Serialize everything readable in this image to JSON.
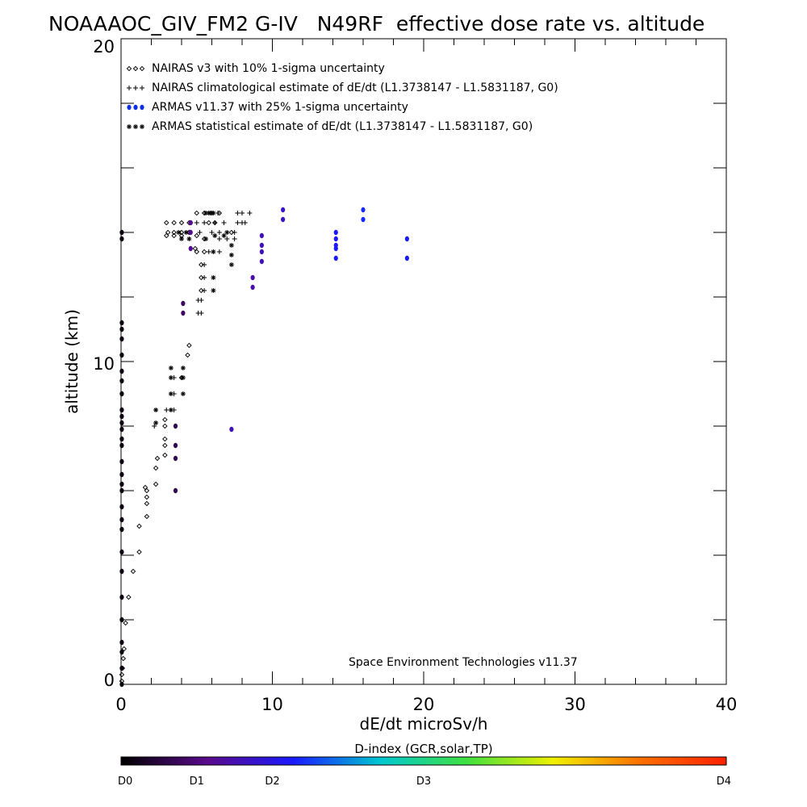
{
  "chart_data": {
    "type": "scatter",
    "title": "NOAAAOC_GIV_FM2 G-IV   N49RF  effective dose rate vs. altitude",
    "xlabel": "dE/dt microSv/h",
    "ylabel": "altitude (km)",
    "xlim": [
      0,
      40
    ],
    "ylim": [
      0,
      20
    ],
    "x_ticks": [
      "0",
      "10",
      "20",
      "30",
      "40"
    ],
    "y_ticks": [
      "0",
      "10",
      "20"
    ],
    "legend_position": "top-left",
    "legend": [
      {
        "label": "NAIRAS v3 with 10% 1-sigma uncertainty",
        "marker": "diamond",
        "color": "#000000"
      },
      {
        "label": "NAIRAS climatological estimate of dE/dt (L1.3738147 - L1.5831187, G0)",
        "marker": "plus",
        "color": "#000000"
      },
      {
        "label": "ARMAS v11.37 with 25% 1-sigma uncertainty",
        "marker": "dot",
        "color": "#1030e0"
      },
      {
        "label": "ARMAS statistical estimate of dE/dt (L1.3738147 - L1.5831187, G0)",
        "marker": "asterisk",
        "color": "#000000"
      }
    ],
    "annotation": "Space Environment Technologies v11.37",
    "colorbar": {
      "title": "D-index (GCR,solar,TP)",
      "labels": [
        "D0",
        "D1",
        "D2",
        "D3",
        "D4"
      ],
      "positions": [
        0,
        0.125,
        0.25,
        0.5,
        1.0
      ],
      "colors": [
        "#000000",
        "#5a0a8c",
        "#1a1aff",
        "#00c8d0",
        "#40e040",
        "#f0f000",
        "#ff7000",
        "#ff2000"
      ]
    },
    "series": [
      {
        "name": "NAIRAS v3 with 10% 1-sigma uncertainty",
        "marker": "diamond",
        "points": [
          [
            0.05,
            0.1
          ],
          [
            0.05,
            0.3
          ],
          [
            0.1,
            0.5
          ],
          [
            0.15,
            0.8
          ],
          [
            0.2,
            1.1
          ],
          [
            0.3,
            1.9
          ],
          [
            0.5,
            2.7
          ],
          [
            0.8,
            3.5
          ],
          [
            1.2,
            4.1
          ],
          [
            1.2,
            4.9
          ],
          [
            1.7,
            5.2
          ],
          [
            1.7,
            5.6
          ],
          [
            1.7,
            5.8
          ],
          [
            1.7,
            6.0
          ],
          [
            1.6,
            6.1
          ],
          [
            2.3,
            6.2
          ],
          [
            2.3,
            6.7
          ],
          [
            2.4,
            7.0
          ],
          [
            2.9,
            7.1
          ],
          [
            2.9,
            7.4
          ],
          [
            2.9,
            7.6
          ],
          [
            2.9,
            8.0
          ],
          [
            2.9,
            8.2
          ],
          [
            4.0,
            9.5
          ],
          [
            4.4,
            10.2
          ],
          [
            4.5,
            10.5
          ],
          [
            5.3,
            12.2
          ],
          [
            5.3,
            12.6
          ],
          [
            5.3,
            13.0
          ],
          [
            4.9,
            13.5
          ],
          [
            3.0,
            13.9
          ],
          [
            3.5,
            13.9
          ],
          [
            4.0,
            13.9
          ],
          [
            4.5,
            14.0
          ],
          [
            5.0,
            13.9
          ],
          [
            5.5,
            13.8
          ],
          [
            3.1,
            14.0
          ],
          [
            3.5,
            14.0
          ],
          [
            4.0,
            14.0
          ],
          [
            4.5,
            14.0
          ],
          [
            3.0,
            14.3
          ],
          [
            3.5,
            14.3
          ],
          [
            4.0,
            14.3
          ],
          [
            4.5,
            14.3
          ],
          [
            5.0,
            14.6
          ],
          [
            5.5,
            14.6
          ],
          [
            6.0,
            14.6
          ],
          [
            6.5,
            14.6
          ],
          [
            5.8,
            14.3
          ],
          [
            6.2,
            14.3
          ],
          [
            5.0,
            13.4
          ],
          [
            5.5,
            13.4
          ],
          [
            7.3,
            14.0
          ]
        ]
      },
      {
        "name": "NAIRAS climatological estimate of dE/dt (L1.3738147 - L1.5831187, G0)",
        "marker": "plus",
        "points": [
          [
            2.2,
            8.0
          ],
          [
            3.0,
            8.5
          ],
          [
            3.5,
            8.5
          ],
          [
            3.5,
            9.0
          ],
          [
            3.5,
            9.5
          ],
          [
            4.0,
            9.5
          ],
          [
            5.1,
            11.5
          ],
          [
            5.1,
            11.9
          ],
          [
            5.3,
            11.9
          ],
          [
            5.3,
            11.5
          ],
          [
            5.5,
            12.6
          ],
          [
            5.5,
            13.0
          ],
          [
            5.5,
            12.2
          ],
          [
            5.8,
            13.4
          ],
          [
            6.5,
            13.4
          ],
          [
            6.5,
            13.8
          ],
          [
            7.0,
            13.8
          ],
          [
            7.5,
            13.8
          ],
          [
            5.2,
            14.0
          ],
          [
            6.0,
            14.0
          ],
          [
            6.5,
            14.0
          ],
          [
            7.5,
            14.0
          ],
          [
            7.7,
            14.3
          ],
          [
            8.0,
            14.3
          ],
          [
            8.2,
            14.3
          ],
          [
            7.7,
            14.6
          ],
          [
            8.0,
            14.6
          ],
          [
            8.5,
            14.6
          ],
          [
            6.2,
            14.3
          ],
          [
            6.8,
            14.3
          ],
          [
            4.6,
            14.3
          ],
          [
            5.0,
            14.3
          ],
          [
            5.5,
            14.3
          ],
          [
            6.0,
            14.6
          ],
          [
            6.4,
            14.6
          ]
        ]
      },
      {
        "name": "ARMAS v11.37 with 25% 1-sigma uncertainty",
        "marker": "dot",
        "points": [
          [
            0.05,
            0.0,
            0.02
          ],
          [
            0.05,
            0.5,
            0.02
          ],
          [
            0.05,
            1.0,
            0.02
          ],
          [
            0.05,
            1.3,
            0.02
          ],
          [
            0.05,
            2.0,
            0.02
          ],
          [
            0.05,
            2.7,
            0.02
          ],
          [
            0.05,
            3.5,
            0.02
          ],
          [
            0.05,
            4.1,
            0.02
          ],
          [
            0.05,
            4.8,
            0.02
          ],
          [
            0.05,
            5.1,
            0.02
          ],
          [
            0.05,
            5.5,
            0.02
          ],
          [
            0.05,
            6.0,
            0.02
          ],
          [
            0.05,
            6.2,
            0.02
          ],
          [
            0.05,
            6.5,
            0.02
          ],
          [
            0.05,
            6.9,
            0.02
          ],
          [
            0.05,
            7.4,
            0.02
          ],
          [
            0.05,
            7.6,
            0.02
          ],
          [
            0.05,
            7.9,
            0.02
          ],
          [
            0.05,
            8.1,
            0.02
          ],
          [
            0.05,
            8.3,
            0.02
          ],
          [
            0.05,
            8.5,
            0.02
          ],
          [
            0.05,
            9.0,
            0.02
          ],
          [
            0.05,
            9.4,
            0.02
          ],
          [
            0.05,
            9.7,
            0.02
          ],
          [
            0.05,
            10.2,
            0.02
          ],
          [
            0.05,
            10.7,
            0.02
          ],
          [
            0.05,
            11.0,
            0.02
          ],
          [
            0.05,
            11.2,
            0.02
          ],
          [
            0.05,
            13.8,
            0.02
          ],
          [
            0.05,
            14.0,
            0.02
          ],
          [
            3.6,
            6.0,
            0.08
          ],
          [
            3.6,
            7.0,
            0.08
          ],
          [
            3.6,
            7.4,
            0.08
          ],
          [
            3.6,
            8.0,
            0.08
          ],
          [
            4.1,
            11.5,
            0.1
          ],
          [
            4.1,
            11.8,
            0.1
          ],
          [
            4.6,
            13.5,
            0.15
          ],
          [
            4.6,
            14.0,
            0.15
          ],
          [
            4.6,
            14.3,
            0.15
          ],
          [
            7.3,
            7.9,
            0.2
          ],
          [
            8.7,
            12.3,
            0.18
          ],
          [
            8.7,
            12.6,
            0.18
          ],
          [
            9.3,
            13.1,
            0.2
          ],
          [
            9.3,
            13.4,
            0.2
          ],
          [
            9.3,
            13.6,
            0.2
          ],
          [
            9.3,
            13.9,
            0.2
          ],
          [
            10.7,
            14.4,
            0.22
          ],
          [
            10.7,
            14.7,
            0.22
          ],
          [
            14.2,
            13.2,
            0.28
          ],
          [
            14.2,
            13.5,
            0.28
          ],
          [
            14.2,
            13.6,
            0.28
          ],
          [
            14.2,
            13.8,
            0.28
          ],
          [
            14.2,
            14.0,
            0.28
          ],
          [
            16.0,
            14.4,
            0.3
          ],
          [
            16.0,
            14.7,
            0.3
          ],
          [
            18.9,
            13.2,
            0.28
          ],
          [
            18.9,
            13.8,
            0.28
          ]
        ]
      },
      {
        "name": "ARMAS statistical estimate of dE/dt (L1.3738147 - L1.5831187, G0)",
        "marker": "asterisk",
        "points": [
          [
            2.3,
            8.5
          ],
          [
            2.3,
            8.1
          ],
          [
            3.3,
            8.5
          ],
          [
            3.3,
            9.0
          ],
          [
            3.3,
            9.5
          ],
          [
            3.3,
            9.8
          ],
          [
            4.1,
            9.0
          ],
          [
            4.1,
            9.5
          ],
          [
            4.1,
            9.8
          ],
          [
            6.1,
            12.2
          ],
          [
            6.1,
            12.6
          ],
          [
            7.3,
            13.0
          ],
          [
            7.3,
            13.3
          ],
          [
            7.3,
            13.6
          ],
          [
            6.1,
            13.4
          ],
          [
            4.0,
            13.8
          ],
          [
            4.5,
            13.8
          ],
          [
            3.8,
            14.0
          ],
          [
            4.3,
            14.0
          ],
          [
            5.6,
            14.6
          ],
          [
            5.8,
            14.6
          ],
          [
            5.9,
            14.6
          ],
          [
            6.1,
            14.6
          ],
          [
            5.6,
            13.8
          ],
          [
            6.2,
            13.9
          ],
          [
            6.8,
            13.9
          ],
          [
            7.0,
            14.0
          ]
        ]
      }
    ]
  }
}
